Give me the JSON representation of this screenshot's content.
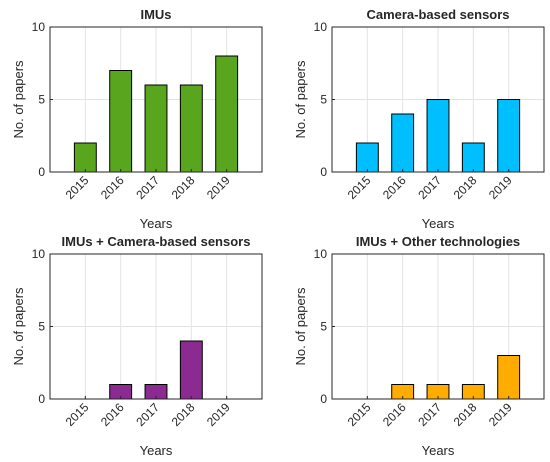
{
  "chart_data": [
    {
      "type": "bar",
      "title": "IMUs",
      "xlabel": "Years",
      "ylabel": "No. of papers",
      "categories": [
        "2015",
        "2016",
        "2017",
        "2018",
        "2019"
      ],
      "values": [
        2,
        7,
        6,
        6,
        8
      ],
      "ylim": [
        0,
        10
      ],
      "yticks": [
        0,
        5,
        10
      ],
      "color": "#5aa51e",
      "grid": true
    },
    {
      "type": "bar",
      "title": "Camera-based sensors",
      "xlabel": "Years",
      "ylabel": "No. of papers",
      "categories": [
        "2015",
        "2016",
        "2017",
        "2018",
        "2019"
      ],
      "values": [
        2,
        4,
        5,
        2,
        5
      ],
      "ylim": [
        0,
        10
      ],
      "yticks": [
        0,
        5,
        10
      ],
      "color": "#00bfff",
      "grid": true
    },
    {
      "type": "bar",
      "title": "IMUs + Camera-based sensors",
      "xlabel": "Years",
      "ylabel": "No. of papers",
      "categories": [
        "2015",
        "2016",
        "2017",
        "2018",
        "2019"
      ],
      "values": [
        0,
        1,
        1,
        4,
        0
      ],
      "ylim": [
        0,
        10
      ],
      "yticks": [
        0,
        5,
        10
      ],
      "color": "#8b2b91",
      "grid": true
    },
    {
      "type": "bar",
      "title": "IMUs + Other technologies",
      "xlabel": "Years",
      "ylabel": "No. of papers",
      "categories": [
        "2015",
        "2016",
        "2017",
        "2018",
        "2019"
      ],
      "values": [
        0,
        1,
        1,
        1,
        3
      ],
      "ylim": [
        0,
        10
      ],
      "yticks": [
        0,
        5,
        10
      ],
      "color": "#ffac00",
      "grid": true
    }
  ]
}
